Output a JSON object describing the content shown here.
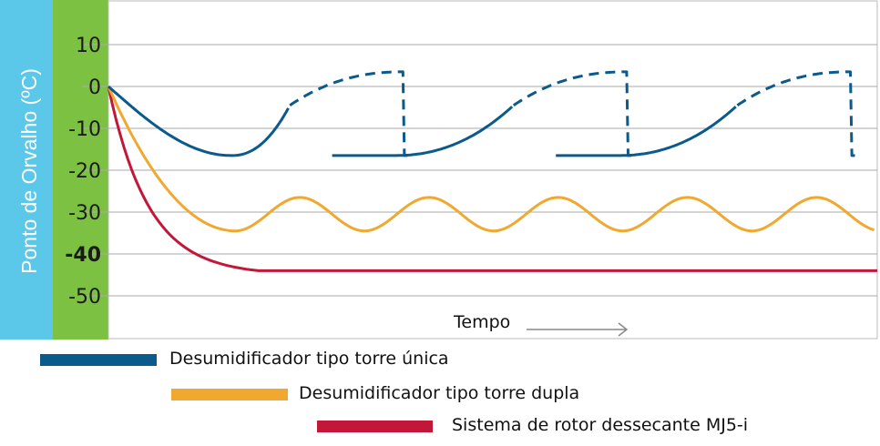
{
  "chart_data": {
    "type": "line",
    "ylabel": "Ponto de Orvalho (ºC)",
    "xlabel": "Tempo",
    "yticks": [
      {
        "value": 10,
        "label": "10",
        "bold": false
      },
      {
        "value": 0,
        "label": "0",
        "bold": false
      },
      {
        "value": -10,
        "label": "-10",
        "bold": false
      },
      {
        "value": -20,
        "label": "-20",
        "bold": false
      },
      {
        "value": -30,
        "label": "-30",
        "bold": false
      },
      {
        "value": -40,
        "label": "-40",
        "bold": true
      },
      {
        "value": -50,
        "label": "-50",
        "bold": false
      }
    ],
    "ylim": [
      -60,
      20
    ],
    "xlim": [
      0,
      100
    ],
    "grid": true,
    "colors": {
      "ylabel_band": "#5bc8ea",
      "ytick_band": "#7dc142",
      "grid": "#aaaaaa",
      "arrow": "#888888"
    },
    "series": [
      {
        "name": "Desumidificador tipo torre única",
        "color": "#0a5a8c",
        "style": "sawtooth-cycle",
        "start": 0,
        "min": -16.5,
        "regen_start": -4.5,
        "peak": 3.5,
        "cycle_points_x": [
          23.5,
          38,
          67.5
        ],
        "cycles_x": [
          [
            0,
            38,
            67.5
          ],
          [
            67.5,
            105,
            134.5
          ],
          [
            134.5,
            172,
            201.5
          ]
        ]
      },
      {
        "name": "Desumidificador tipo torre dupla",
        "color": "#f0a830",
        "style": "oscillating",
        "start": 0,
        "mean": -30.5,
        "amplitude": 4,
        "first_trough_x": 16.5,
        "period_x": 16.8
      },
      {
        "name": "Sistema de rotor dessecante MJ5-i",
        "color": "#c3173a",
        "style": "decay",
        "start": 0,
        "plateau": -44,
        "plateau_x": 19.5
      }
    ],
    "legend_position": "bottom"
  }
}
